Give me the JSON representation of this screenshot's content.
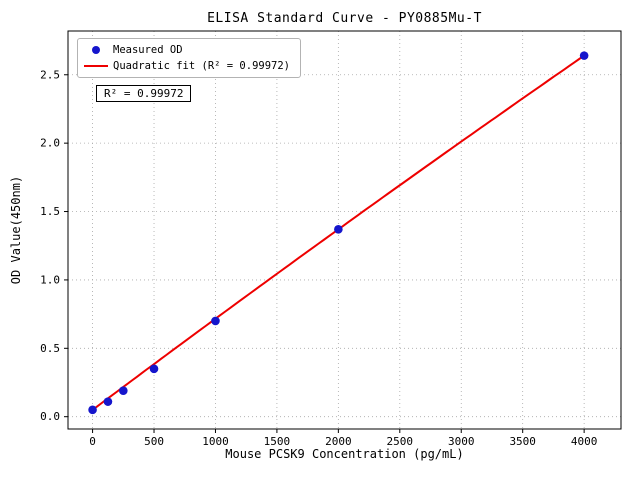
{
  "chart_data": {
    "type": "scatter",
    "title": "ELISA Standard Curve - PY0885Mu-T",
    "xlabel": "Mouse PCSK9 Concentration (pg/mL)",
    "ylabel": "OD Value(450nm)",
    "xlim": [
      -200,
      4300
    ],
    "ylim": [
      -0.09,
      2.82
    ],
    "xticks": [
      0,
      500,
      1000,
      1500,
      2000,
      2500,
      3000,
      3500,
      4000
    ],
    "xtick_labels": [
      "0",
      "500",
      "1000",
      "1500",
      "2000",
      "2500",
      "3000",
      "3500",
      "4000"
    ],
    "yticks": [
      0.0,
      0.5,
      1.0,
      1.5,
      2.0,
      2.5
    ],
    "ytick_labels": [
      "0.0",
      "0.5",
      "1.0",
      "1.5",
      "2.0",
      "2.5"
    ],
    "grid": true,
    "grid_style": "dotted",
    "legend_position": "upper left",
    "annotation": "R² = 0.99972",
    "series": [
      {
        "name": "Measured OD",
        "type": "scatter",
        "color": "#1515cc",
        "x": [
          0,
          125,
          250,
          500,
          1000,
          2000,
          4000
        ],
        "y": [
          0.05,
          0.11,
          0.19,
          0.35,
          0.7,
          1.37,
          2.64
        ]
      },
      {
        "name": "Quadratic fit (R² = 0.99972)",
        "type": "quadratic",
        "color": "#ee0000",
        "coeffs": {
          "a": -6.25e-09,
          "b": 0.0006725,
          "c": 0.05
        },
        "range": [
          0,
          4000
        ]
      }
    ]
  }
}
